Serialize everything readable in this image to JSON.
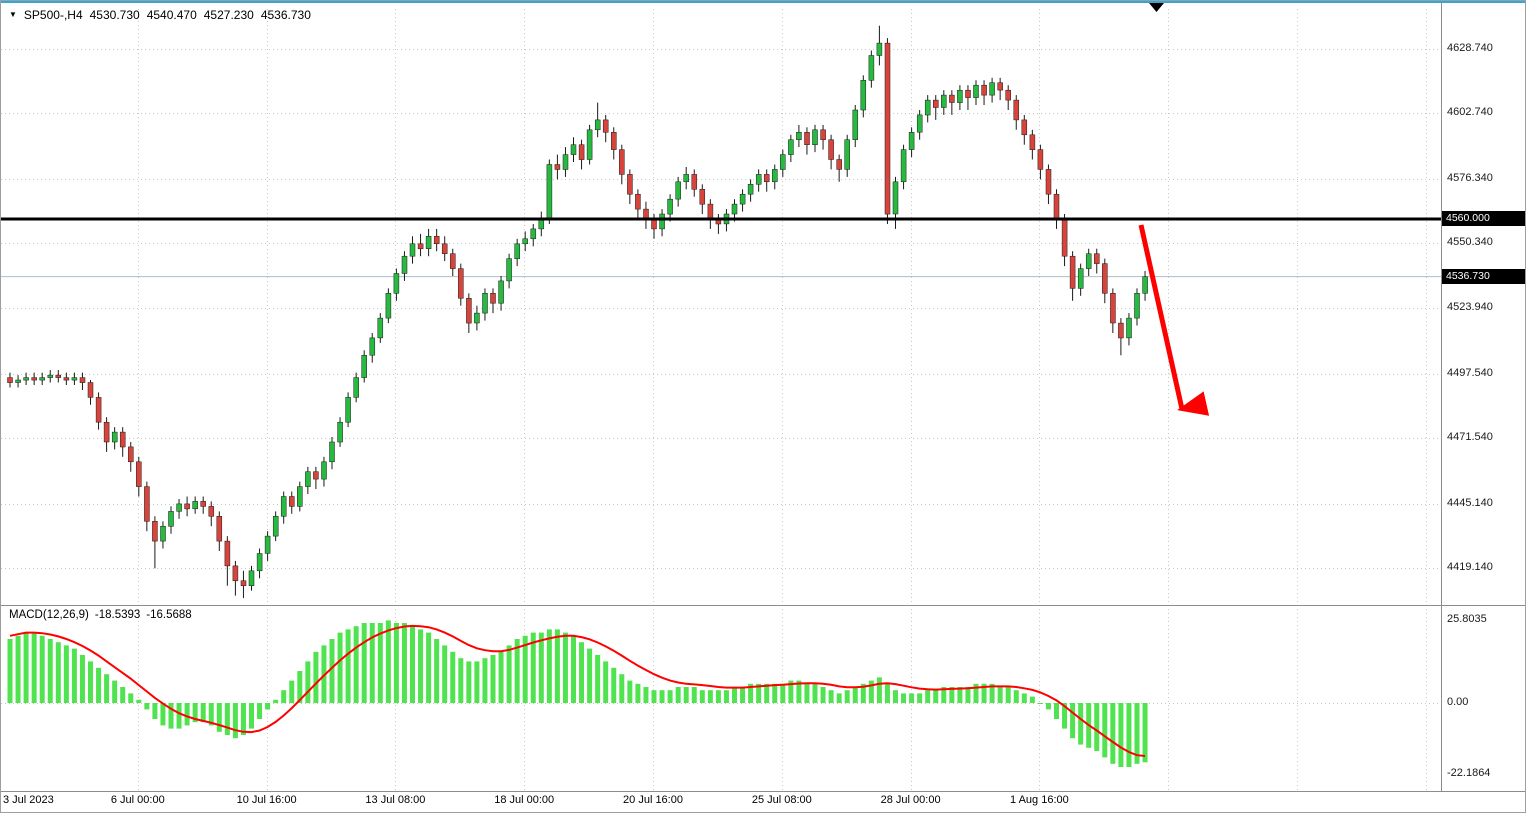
{
  "header": {
    "dropdown_icon": "▼",
    "symbol_period": "SP500-,H4",
    "open": "4530.730",
    "high": "4540.470",
    "low": "4527.230",
    "close": "4536.730"
  },
  "price_axis": {
    "labels": [
      "4628.740",
      "4602.740",
      "4576.340",
      "4550.340",
      "4523.940",
      "4497.540",
      "4471.540",
      "4445.140",
      "4419.140"
    ],
    "level_badge": "4560.000",
    "price_badge": "4536.730"
  },
  "time_axis": {
    "labels": [
      "3 Jul 2023",
      "6 Jul 00:00",
      "10 Jul 16:00",
      "13 Jul 08:00",
      "18 Jul 00:00",
      "20 Jul 16:00",
      "25 Jul 08:00",
      "28 Jul 00:00",
      "1 Aug 16:00"
    ]
  },
  "macd_panel": {
    "label": "MACD(12,26,9)",
    "macd_value": "-18.5393",
    "signal_value": "-16.5688",
    "axis_labels": [
      "25.8035",
      "0.00",
      "-22.1864"
    ]
  },
  "colors": {
    "candle_up": "#28B940",
    "candle_down": "#D6443C",
    "wick": "#1a1a1a",
    "macd_histogram": "#4FE34F",
    "signal_line": "#FF0000",
    "grid": "#C8C8C8",
    "separator": "#8C8C8C",
    "current_price_line": "#A8BFCB",
    "level_line": "#000000",
    "arrow": "#FF0000",
    "accent_top": "#2FA8DA",
    "badge_bg": "#000000",
    "badge_text": "#FFFFFF"
  },
  "chart_data": [
    {
      "type": "candlestick",
      "symbol": "SP500-",
      "timeframe": "H4",
      "title": "SP500-,H4 4530.730 4540.470 4527.230 4536.730",
      "ylim": [
        4407,
        4640
      ],
      "level_line": 4560.0,
      "last_price": 4536.73,
      "y_ticks": [
        4628.74,
        4602.74,
        4576.34,
        4550.34,
        4523.94,
        4497.54,
        4471.54,
        4445.14,
        4419.14
      ],
      "x_labels": [
        "3 Jul 2023",
        "6 Jul 00:00",
        "10 Jul 16:00",
        "13 Jul 08:00",
        "18 Jul 00:00",
        "20 Jul 16:00",
        "25 Jul 08:00",
        "28 Jul 00:00",
        "1 Aug 16:00"
      ],
      "annotations": [
        {
          "type": "arrow",
          "direction": "down-right",
          "color": "#FF0000"
        }
      ],
      "candles": [
        [
          4496,
          4498,
          4492,
          4494
        ],
        [
          4494,
          4497,
          4492,
          4495
        ],
        [
          4495,
          4498,
          4493,
          4496
        ],
        [
          4496,
          4498,
          4493,
          4495
        ],
        [
          4495,
          4498,
          4493,
          4496
        ],
        [
          4496,
          4499,
          4494,
          4497
        ],
        [
          4497,
          4499,
          4494,
          4496
        ],
        [
          4496,
          4498,
          4493,
          4495
        ],
        [
          4495,
          4498,
          4493,
          4496
        ],
        [
          4496,
          4498,
          4491,
          4494
        ],
        [
          4494,
          4495,
          4485,
          4488
        ],
        [
          4488,
          4490,
          4475,
          4478
        ],
        [
          4478,
          4480,
          4466,
          4470
        ],
        [
          4470,
          4476,
          4467,
          4474
        ],
        [
          4474,
          4476,
          4464,
          4468
        ],
        [
          4468,
          4470,
          4458,
          4462
        ],
        [
          4462,
          4464,
          4448,
          4452
        ],
        [
          4452,
          4454,
          4434,
          4438
        ],
        [
          4438,
          4440,
          4419,
          4430
        ],
        [
          4430,
          4438,
          4427,
          4436
        ],
        [
          4436,
          4444,
          4433,
          4442
        ],
        [
          4442,
          4447,
          4439,
          4445
        ],
        [
          4445,
          4448,
          4440,
          4443
        ],
        [
          4443,
          4448,
          4441,
          4446
        ],
        [
          4446,
          4448,
          4441,
          4444
        ],
        [
          4444,
          4446,
          4436,
          4440
        ],
        [
          4440,
          4442,
          4426,
          4430
        ],
        [
          4430,
          4432,
          4412,
          4420
        ],
        [
          4420,
          4422,
          4408,
          4414
        ],
        [
          4414,
          4418,
          4407,
          4412
        ],
        [
          4412,
          4420,
          4410,
          4418
        ],
        [
          4418,
          4427,
          4415,
          4425
        ],
        [
          4425,
          4434,
          4422,
          4432
        ],
        [
          4432,
          4442,
          4430,
          4440
        ],
        [
          4440,
          4450,
          4437,
          4448
        ],
        [
          4448,
          4450,
          4441,
          4444
        ],
        [
          4444,
          4454,
          4442,
          4452
        ],
        [
          4452,
          4460,
          4449,
          4458
        ],
        [
          4458,
          4460,
          4451,
          4455
        ],
        [
          4455,
          4464,
          4452,
          4462
        ],
        [
          4462,
          4472,
          4459,
          4470
        ],
        [
          4470,
          4480,
          4468,
          4478
        ],
        [
          4478,
          4490,
          4476,
          4488
        ],
        [
          4488,
          4498,
          4486,
          4496
        ],
        [
          4496,
          4507,
          4494,
          4505
        ],
        [
          4505,
          4514,
          4502,
          4512
        ],
        [
          4512,
          4522,
          4510,
          4520
        ],
        [
          4520,
          4532,
          4518,
          4530
        ],
        [
          4530,
          4540,
          4527,
          4538
        ],
        [
          4538,
          4547,
          4535,
          4545
        ],
        [
          4545,
          4553,
          4542,
          4550
        ],
        [
          4550,
          4554,
          4545,
          4548
        ],
        [
          4548,
          4556,
          4545,
          4553
        ],
        [
          4553,
          4556,
          4547,
          4550
        ],
        [
          4550,
          4553,
          4543,
          4546
        ],
        [
          4546,
          4548,
          4537,
          4540
        ],
        [
          4540,
          4542,
          4525,
          4528
        ],
        [
          4528,
          4530,
          4514,
          4518
        ],
        [
          4518,
          4525,
          4515,
          4522
        ],
        [
          4522,
          4532,
          4519,
          4530
        ],
        [
          4530,
          4532,
          4522,
          4526
        ],
        [
          4526,
          4537,
          4523,
          4535
        ],
        [
          4535,
          4546,
          4532,
          4544
        ],
        [
          4544,
          4552,
          4541,
          4550
        ],
        [
          4550,
          4555,
          4547,
          4552
        ],
        [
          4552,
          4558,
          4549,
          4556
        ],
        [
          4556,
          4563,
          4553,
          4560
        ],
        [
          4560,
          4584,
          4558,
          4582
        ],
        [
          4582,
          4586,
          4576,
          4580
        ],
        [
          4580,
          4589,
          4577,
          4586
        ],
        [
          4586,
          4593,
          4583,
          4590
        ],
        [
          4590,
          4592,
          4580,
          4584
        ],
        [
          4584,
          4598,
          4582,
          4596
        ],
        [
          4596,
          4607,
          4593,
          4600
        ],
        [
          4600,
          4602,
          4591,
          4595
        ],
        [
          4595,
          4597,
          4584,
          4588
        ],
        [
          4588,
          4590,
          4574,
          4578
        ],
        [
          4578,
          4580,
          4566,
          4570
        ],
        [
          4570,
          4572,
          4560,
          4564
        ],
        [
          4564,
          4567,
          4556,
          4560
        ],
        [
          4560,
          4562,
          4552,
          4556
        ],
        [
          4556,
          4564,
          4553,
          4562
        ],
        [
          4562,
          4570,
          4559,
          4568
        ],
        [
          4568,
          4577,
          4565,
          4575
        ],
        [
          4575,
          4581,
          4572,
          4578
        ],
        [
          4578,
          4580,
          4569,
          4572
        ],
        [
          4572,
          4574,
          4562,
          4566
        ],
        [
          4566,
          4568,
          4556,
          4560
        ],
        [
          4560,
          4562,
          4554,
          4558
        ],
        [
          4558,
          4564,
          4555,
          4562
        ],
        [
          4562,
          4568,
          4559,
          4566
        ],
        [
          4566,
          4572,
          4563,
          4570
        ],
        [
          4570,
          4576,
          4567,
          4574
        ],
        [
          4574,
          4580,
          4571,
          4578
        ],
        [
          4578,
          4580,
          4571,
          4575
        ],
        [
          4575,
          4582,
          4572,
          4580
        ],
        [
          4580,
          4588,
          4577,
          4586
        ],
        [
          4586,
          4594,
          4583,
          4592
        ],
        [
          4592,
          4598,
          4589,
          4595
        ],
        [
          4595,
          4597,
          4586,
          4590
        ],
        [
          4590,
          4598,
          4587,
          4596
        ],
        [
          4596,
          4598,
          4588,
          4592
        ],
        [
          4592,
          4594,
          4580,
          4584
        ],
        [
          4584,
          4586,
          4575,
          4580
        ],
        [
          4580,
          4594,
          4577,
          4592
        ],
        [
          4592,
          4606,
          4589,
          4604
        ],
        [
          4604,
          4618,
          4601,
          4616
        ],
        [
          4616,
          4628,
          4613,
          4626
        ],
        [
          4626,
          4638,
          4622,
          4631
        ],
        [
          4631,
          4633,
          4558,
          4562
        ],
        [
          4562,
          4577,
          4556,
          4575
        ],
        [
          4575,
          4590,
          4572,
          4588
        ],
        [
          4588,
          4597,
          4585,
          4595
        ],
        [
          4595,
          4604,
          4592,
          4602
        ],
        [
          4602,
          4610,
          4599,
          4608
        ],
        [
          4608,
          4610,
          4600,
          4605
        ],
        [
          4605,
          4612,
          4602,
          4610
        ],
        [
          4610,
          4612,
          4602,
          4607
        ],
        [
          4607,
          4614,
          4604,
          4612
        ],
        [
          4612,
          4614,
          4604,
          4609
        ],
        [
          4609,
          4616,
          4606,
          4614
        ],
        [
          4614,
          4616,
          4606,
          4610
        ],
        [
          4610,
          4617,
          4607,
          4615
        ],
        [
          4615,
          4617,
          4608,
          4612
        ],
        [
          4612,
          4614,
          4604,
          4608
        ],
        [
          4608,
          4610,
          4596,
          4600
        ],
        [
          4600,
          4602,
          4590,
          4594
        ],
        [
          4594,
          4596,
          4584,
          4588
        ],
        [
          4588,
          4590,
          4576,
          4580
        ],
        [
          4580,
          4582,
          4566,
          4570
        ],
        [
          4570,
          4572,
          4556,
          4560
        ],
        [
          4560,
          4562,
          4541,
          4545
        ],
        [
          4545,
          4547,
          4527,
          4532
        ],
        [
          4532,
          4542,
          4529,
          4540
        ],
        [
          4540,
          4548,
          4537,
          4546
        ],
        [
          4546,
          4548,
          4538,
          4542
        ],
        [
          4542,
          4544,
          4526,
          4530
        ],
        [
          4530,
          4532,
          4514,
          4518
        ],
        [
          4518,
          4520,
          4505,
          4512
        ],
        [
          4512,
          4522,
          4509,
          4520
        ],
        [
          4520,
          4532,
          4517,
          4530
        ],
        [
          4530,
          4539,
          4527,
          4536.7
        ]
      ]
    },
    {
      "type": "macd",
      "label": "MACD(12,26,9)",
      "last_macd": -18.5393,
      "last_signal": -16.5688,
      "ylim": [
        -22.1864,
        25.8035
      ],
      "zero_level": 0,
      "histogram": [
        20,
        21,
        22,
        22,
        21,
        20,
        19,
        18,
        17,
        15,
        13,
        11,
        9,
        7,
        5,
        3,
        1,
        -2,
        -5,
        -7,
        -8,
        -8,
        -7,
        -6,
        -6,
        -7,
        -9,
        -10,
        -11,
        -10,
        -8,
        -5,
        -2,
        1,
        4,
        7,
        10,
        13,
        16,
        18,
        20,
        22,
        23,
        24,
        25,
        25,
        25,
        25.8,
        25,
        25,
        24,
        23,
        22,
        20,
        18,
        16,
        14,
        13,
        13,
        14,
        15,
        16,
        18,
        20,
        21,
        22,
        22,
        23,
        23,
        22,
        21,
        19,
        17,
        15,
        13,
        11,
        9,
        7,
        6,
        5,
        4,
        4,
        4,
        5,
        5,
        5,
        4,
        4,
        4,
        4,
        5,
        5,
        6,
        6,
        6,
        6,
        6,
        7,
        7,
        6,
        6,
        5,
        4,
        3,
        4,
        5,
        6,
        7,
        8,
        6,
        4,
        3,
        3,
        3,
        4,
        4,
        5,
        5,
        5,
        5,
        6,
        6,
        6,
        5,
        5,
        4,
        3,
        2,
        0,
        -2,
        -5,
        -8,
        -11,
        -13,
        -14,
        -15,
        -17,
        -19,
        -20,
        -20,
        -19,
        -18.54
      ],
      "signal": [
        21,
        21.5,
        22,
        22,
        21.8,
        21.4,
        20.8,
        20,
        19,
        17.8,
        16.4,
        14.8,
        13,
        11.2,
        9.4,
        7.6,
        5.6,
        3.6,
        1.6,
        -0.2,
        -1.8,
        -3.2,
        -4.2,
        -5,
        -5.6,
        -6.2,
        -6.9,
        -7.7,
        -8.5,
        -9,
        -9.1,
        -8.6,
        -7.5,
        -5.9,
        -3.9,
        -1.6,
        0.9,
        3.5,
        6.1,
        8.6,
        11,
        13.3,
        15.4,
        17.3,
        19,
        20.5,
        21.7,
        22.7,
        23.4,
        23.9,
        24.1,
        24,
        23.7,
        23,
        22,
        20.8,
        19.4,
        18.1,
        17.1,
        16.5,
        16.2,
        16.2,
        16.6,
        17.3,
        18.1,
        18.9,
        19.6,
        20.2,
        20.7,
        21,
        21,
        20.6,
        19.9,
        18.9,
        17.7,
        16.3,
        14.8,
        13.2,
        11.7,
        10.3,
        9,
        7.9,
        7,
        6.4,
        6,
        5.8,
        5.6,
        5.3,
        5,
        4.8,
        4.8,
        4.8,
        5,
        5.2,
        5.4,
        5.6,
        5.7,
        5.9,
        6.1,
        6.2,
        6.2,
        6,
        5.7,
        5.2,
        4.9,
        4.9,
        5.1,
        5.5,
        6,
        6.2,
        5.9,
        5.4,
        4.9,
        4.5,
        4.3,
        4.2,
        4.3,
        4.4,
        4.5,
        4.6,
        4.8,
        5,
        5.2,
        5.2,
        5.2,
        5,
        4.6,
        4.1,
        3.3,
        2.2,
        0.8,
        -1,
        -3,
        -5,
        -6.9,
        -8.6,
        -10.4,
        -12.2,
        -13.9,
        -15.3,
        -16.3,
        -16.57
      ]
    }
  ]
}
